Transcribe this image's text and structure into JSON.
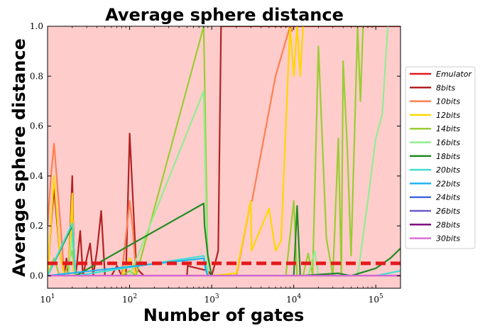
{
  "chart_data": {
    "type": "line",
    "title": "Average sphere distance",
    "xlabel": "Number of gates",
    "ylabel": "Average sphere distance",
    "xscale": "log",
    "xlim": [
      10,
      200000
    ],
    "ylim": [
      -0.05,
      1.0
    ],
    "background_color": "#ffcccc",
    "grid": false,
    "legend_position": "right",
    "x_ticks": [
      {
        "value": 10,
        "base": "10",
        "exp": "1"
      },
      {
        "value": 100,
        "base": "10",
        "exp": "2"
      },
      {
        "value": 1000,
        "base": "10",
        "exp": "3"
      },
      {
        "value": 10000,
        "base": "10",
        "exp": "4"
      },
      {
        "value": 100000,
        "base": "10",
        "exp": "5"
      }
    ],
    "y_ticks": [
      {
        "value": 0.0,
        "label": "0.0"
      },
      {
        "value": 0.2,
        "label": "0.2"
      },
      {
        "value": 0.4,
        "label": "0.4"
      },
      {
        "value": 0.6,
        "label": "0.6"
      },
      {
        "value": 0.8,
        "label": "0.8"
      },
      {
        "value": 1.0,
        "label": "1.0"
      }
    ],
    "series": [
      {
        "name": "Emulator",
        "color": "#e31a1c",
        "dashed": true,
        "x": [
          10,
          200000
        ],
        "y": [
          0.05,
          0.05
        ]
      },
      {
        "name": "8bits",
        "color": "#b22222",
        "x": [
          10,
          11,
          12,
          14,
          16,
          17,
          18,
          20,
          21,
          22,
          25,
          27,
          30,
          33,
          36,
          40,
          45,
          50,
          60,
          70,
          80,
          90,
          100,
          110,
          120,
          130,
          150,
          500,
          510,
          900,
          1000,
          1100,
          1200,
          1300,
          1500,
          200000
        ],
        "y": [
          0.0,
          0.2,
          0.35,
          0.1,
          0.0,
          0.07,
          0.0,
          0.4,
          0.05,
          0.0,
          0.18,
          0.0,
          0.07,
          0.13,
          0.0,
          0.1,
          0.26,
          0.0,
          0.0,
          0.04,
          0.0,
          0.0,
          0.57,
          0.3,
          0.05,
          0.02,
          0.0,
          0.0,
          0.04,
          0.02,
          0.0,
          0.05,
          0.1,
          1.0,
          1.0,
          1.0
        ]
      },
      {
        "name": "10bits",
        "color": "#ff7f50",
        "x": [
          10,
          11,
          12,
          14,
          16,
          18,
          20,
          21,
          22,
          50,
          80,
          100,
          110,
          120,
          130,
          150,
          1000,
          2000,
          3000,
          3100,
          6000,
          9000,
          9500,
          10000
        ],
        "y": [
          0.2,
          0.4,
          0.53,
          0.25,
          0.0,
          0.0,
          0.32,
          0.0,
          0.0,
          0.0,
          0.0,
          0.3,
          0.18,
          0.0,
          0.0,
          0.0,
          0.0,
          0.0,
          0.3,
          0.3,
          0.8,
          1.0,
          0.98,
          1.0
        ]
      },
      {
        "name": "12bits",
        "color": "#ffd700",
        "x": [
          10,
          12,
          14,
          16,
          18,
          20,
          21,
          22,
          30,
          50,
          80,
          100,
          110,
          120,
          1000,
          2000,
          3000,
          3050,
          5000,
          6000,
          7000,
          9000,
          10000,
          11000,
          12000,
          13000
        ],
        "y": [
          0.0,
          0.4,
          0.1,
          0.0,
          0.0,
          0.33,
          0.0,
          0.0,
          0.0,
          0.0,
          0.0,
          0.07,
          0.04,
          0.0,
          0.0,
          0.01,
          0.3,
          0.1,
          0.27,
          0.1,
          0.14,
          1.0,
          0.8,
          1.0,
          0.8,
          1.0
        ]
      },
      {
        "name": "14bits",
        "color": "#9acd32",
        "x": [
          10,
          12,
          14,
          16,
          20,
          22,
          50,
          80,
          100,
          120,
          800,
          900,
          1000,
          5000,
          8000,
          10000,
          11000,
          13000,
          15000,
          17000,
          20000,
          25000,
          30000,
          35000,
          38000,
          40000,
          45000,
          50000,
          60000,
          65000,
          70000
        ],
        "y": [
          0.0,
          0.07,
          0.0,
          0.0,
          0.1,
          0.0,
          0.0,
          0.0,
          0.02,
          0.0,
          1.0,
          0.0,
          0.0,
          0.0,
          0.0,
          0.3,
          0.0,
          0.0,
          0.09,
          0.0,
          0.92,
          0.15,
          0.0,
          0.55,
          0.0,
          0.86,
          0.51,
          0.08,
          1.0,
          0.7,
          1.0
        ]
      },
      {
        "name": "16bits",
        "color": "#90ee90",
        "x": [
          10,
          14,
          18,
          20,
          22,
          100,
          800,
          850,
          900,
          1000,
          10000,
          15000,
          18000,
          20000,
          30000,
          60000,
          80000,
          100000,
          120000,
          140000
        ],
        "y": [
          0.0,
          0.0,
          0.0,
          0.17,
          0.0,
          0.0,
          0.74,
          0.3,
          0.0,
          0.0,
          0.0,
          0.0,
          0.1,
          0.0,
          0.0,
          0.0,
          0.3,
          0.55,
          0.65,
          1.0
        ]
      },
      {
        "name": "18bits",
        "color": "#228b22",
        "x": [
          10,
          20,
          22,
          800,
          820,
          900,
          1000,
          10000,
          11000,
          12000,
          35000,
          50000,
          100000,
          150000,
          200000
        ],
        "y": [
          0.0,
          0.2,
          0.0,
          0.29,
          0.2,
          0.08,
          0.0,
          0.0,
          0.28,
          0.0,
          0.01,
          0.0,
          0.03,
          0.07,
          0.11
        ]
      },
      {
        "name": "20bits",
        "color": "#40e0d0",
        "x": [
          10,
          20,
          22,
          800,
          900,
          1000,
          100000,
          200000
        ],
        "y": [
          0.0,
          0.21,
          0.0,
          0.08,
          0.0,
          0.0,
          0.0,
          0.02
        ]
      },
      {
        "name": "22bits",
        "color": "#1fb4f0",
        "x": [
          10,
          800,
          850,
          900,
          200000
        ],
        "y": [
          0.0,
          0.07,
          0.02,
          0.0,
          0.0
        ]
      },
      {
        "name": "24bits",
        "color": "#4169e1",
        "x": [
          10,
          200000
        ],
        "y": [
          0.0,
          0.0
        ]
      },
      {
        "name": "26bits",
        "color": "#6a5acd",
        "x": [
          10,
          200000
        ],
        "y": [
          0.0,
          0.0
        ]
      },
      {
        "name": "28bits",
        "color": "#800080",
        "x": [
          10,
          200000
        ],
        "y": [
          0.0,
          0.0
        ]
      },
      {
        "name": "30bits",
        "color": "#da70d6",
        "x": [
          10,
          200000
        ],
        "y": [
          0.0,
          0.0
        ]
      }
    ]
  }
}
